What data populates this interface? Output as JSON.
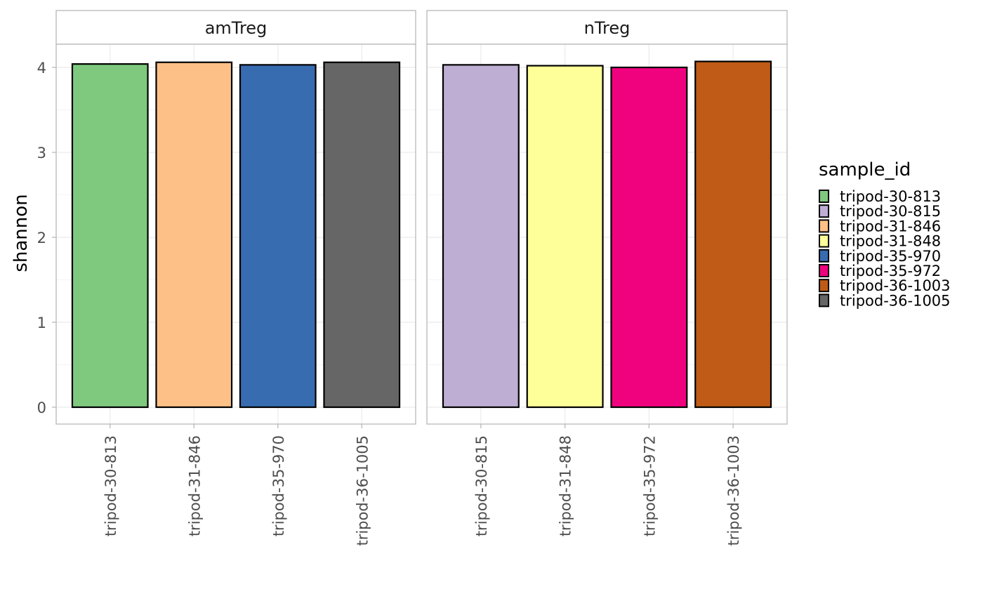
{
  "chart_data": {
    "type": "bar",
    "ylabel": "shannon",
    "xlabel": "",
    "ylim": [
      -0.2,
      4.2
    ],
    "yticks": [
      0,
      1,
      2,
      3,
      4
    ],
    "grid": true,
    "legend": {
      "title": "sample_id",
      "position": "right",
      "entries": [
        {
          "label": "tripod-30-813",
          "color": "#7FC97F"
        },
        {
          "label": "tripod-30-815",
          "color": "#BEAED4"
        },
        {
          "label": "tripod-31-846",
          "color": "#FDC086"
        },
        {
          "label": "tripod-31-848",
          "color": "#FFFF99"
        },
        {
          "label": "tripod-35-970",
          "color": "#386CB0"
        },
        {
          "label": "tripod-35-972",
          "color": "#F0027F"
        },
        {
          "label": "tripod-36-1003",
          "color": "#BF5B17"
        },
        {
          "label": "tripod-36-1005",
          "color": "#666666"
        }
      ]
    },
    "facets": [
      {
        "label": "amTreg",
        "categories": [
          "tripod-30-813",
          "tripod-31-846",
          "tripod-35-970",
          "tripod-36-1005"
        ],
        "values": [
          4.04,
          4.06,
          4.03,
          4.06
        ],
        "colors": [
          "#7FC97F",
          "#FDC086",
          "#386CB0",
          "#666666"
        ]
      },
      {
        "label": "nTreg",
        "categories": [
          "tripod-30-815",
          "tripod-31-848",
          "tripod-35-972",
          "tripod-36-1003"
        ],
        "values": [
          4.03,
          4.02,
          4.0,
          4.07
        ],
        "colors": [
          "#BEAED4",
          "#FFFF99",
          "#F0027F",
          "#BF5B17"
        ]
      }
    ]
  }
}
